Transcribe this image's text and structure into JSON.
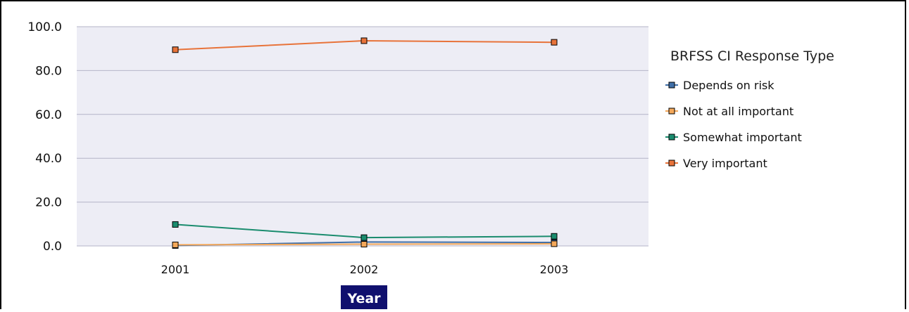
{
  "chart_data": {
    "type": "line",
    "title": "",
    "xlabel": "Year",
    "ylabel": "",
    "categories": [
      "2001",
      "2002",
      "2003"
    ],
    "y_ticks": [
      "0.0",
      "20.0",
      "40.0",
      "60.0",
      "80.0",
      "100.0"
    ],
    "ylim": [
      0,
      100
    ],
    "grid": true,
    "legend_title": "BRFSS CI Response Type",
    "legend_position": "right",
    "series": [
      {
        "name": "Depends on risk",
        "values": [
          0.2,
          1.8,
          1.6
        ],
        "color": "#3f6fa8"
      },
      {
        "name": "Not at all important",
        "values": [
          0.5,
          0.8,
          1.0
        ],
        "color": "#f4a85a"
      },
      {
        "name": "Somewhat important",
        "values": [
          9.8,
          3.8,
          4.4
        ],
        "color": "#1a8c6e"
      },
      {
        "name": "Very important",
        "values": [
          89.5,
          93.6,
          92.9
        ],
        "color": "#e8733a"
      }
    ]
  },
  "colors": {
    "plot_background": "#ededf5",
    "grid": "#b4b4c8",
    "xlabel_background": "#10106e"
  }
}
